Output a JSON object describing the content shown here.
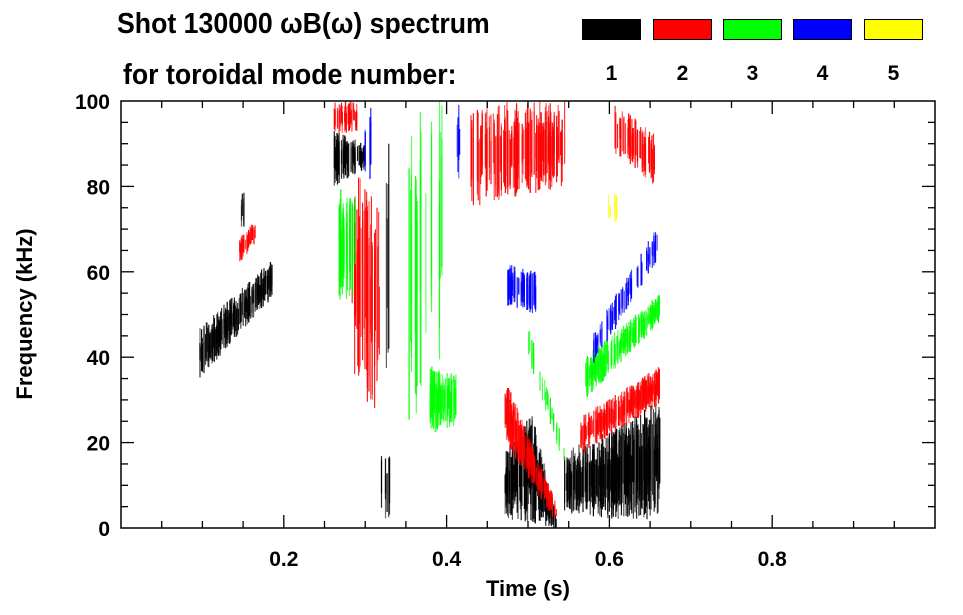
{
  "title_line1": "Shot 130000 ωB(ω) spectrum",
  "title_line2": "for toroidal mode number:",
  "legend": [
    {
      "mode": "1",
      "color": "#000000"
    },
    {
      "mode": "2",
      "color": "#ff0000"
    },
    {
      "mode": "3",
      "color": "#00ff00"
    },
    {
      "mode": "4",
      "color": "#0000ff"
    },
    {
      "mode": "5",
      "color": "#ffff00"
    }
  ],
  "chart_data": {
    "type": "heatmap",
    "title": "Shot 130000 ωB(ω) spectrum for toroidal mode number: 1 2 3 4 5",
    "xlabel": "Time (s)",
    "ylabel": "Frequency (kHz)",
    "xlim": [
      0,
      1.0
    ],
    "ylim": [
      0,
      100
    ],
    "xticks": [
      "0.2",
      "0.4",
      "0.6",
      "0.8"
    ],
    "xtick_values": [
      0.2,
      0.4,
      0.6,
      0.8
    ],
    "yticks": [
      "0",
      "20",
      "40",
      "60",
      "80",
      "100"
    ],
    "ytick_values": [
      0,
      20,
      40,
      60,
      80,
      100
    ],
    "legend_position": "top-right",
    "features": [
      {
        "mode": 1,
        "t": [
          0.097,
          0.186
        ],
        "f_start": [
          35,
          47
        ],
        "f_end": [
          54,
          63
        ],
        "density": 0.95
      },
      {
        "mode": 1,
        "t": [
          0.148,
          0.152
        ],
        "f_start": [
          70,
          79
        ],
        "f_end": [
          70,
          79
        ],
        "density": 0.5
      },
      {
        "mode": 1,
        "t": [
          0.262,
          0.3
        ],
        "f_start": [
          80,
          93
        ],
        "f_end": [
          84,
          90
        ],
        "density": 0.7
      },
      {
        "mode": 1,
        "t": [
          0.326,
          0.329
        ],
        "f_start": [
          30,
          90
        ],
        "f_end": [
          30,
          90
        ],
        "density": 1
      },
      {
        "mode": 1,
        "t": [
          0.32,
          0.33
        ],
        "f_start": [
          1,
          20
        ],
        "f_end": [
          1,
          20
        ],
        "density": 0.6
      },
      {
        "mode": 1,
        "t": [
          0.472,
          0.505
        ],
        "f_start": [
          2,
          18
        ],
        "f_end": [
          1,
          27
        ],
        "density": 0.95
      },
      {
        "mode": 1,
        "t": [
          0.505,
          0.535
        ],
        "f_start": [
          1,
          27
        ],
        "f_end": [
          0,
          3
        ],
        "density": 0.95
      },
      {
        "mode": 1,
        "t": [
          0.545,
          0.6
        ],
        "f_start": [
          3,
          18
        ],
        "f_end": [
          2,
          23
        ],
        "density": 0.95
      },
      {
        "mode": 1,
        "t": [
          0.6,
          0.662
        ],
        "f_start": [
          2,
          23
        ],
        "f_end": [
          2,
          30
        ],
        "density": 0.95
      },
      {
        "mode": 2,
        "t": [
          0.145,
          0.165
        ],
        "f_start": [
          62,
          68
        ],
        "f_end": [
          66,
          72
        ],
        "density": 0.8
      },
      {
        "mode": 2,
        "t": [
          0.262,
          0.29
        ],
        "f_start": [
          92,
          100
        ],
        "f_end": [
          93,
          100
        ],
        "density": 0.7
      },
      {
        "mode": 2,
        "t": [
          0.284,
          0.318
        ],
        "f_start": [
          35,
          85
        ],
        "f_end": [
          25,
          75
        ],
        "density": 0.75
      },
      {
        "mode": 2,
        "t": [
          0.43,
          0.545
        ],
        "f_start": [
          75,
          100
        ],
        "f_end": [
          80,
          100
        ],
        "density": 0.75
      },
      {
        "mode": 2,
        "t": [
          0.472,
          0.535
        ],
        "f_start": [
          20,
          35
        ],
        "f_end": [
          1,
          6
        ],
        "density": 0.85
      },
      {
        "mode": 2,
        "t": [
          0.565,
          0.662
        ],
        "f_start": [
          17,
          26
        ],
        "f_end": [
          29,
          38
        ],
        "density": 0.9
      },
      {
        "mode": 2,
        "t": [
          0.605,
          0.657
        ],
        "f_start": [
          88,
          100
        ],
        "f_end": [
          80,
          92
        ],
        "density": 0.6
      },
      {
        "mode": 3,
        "t": [
          0.268,
          0.29
        ],
        "f_start": [
          50,
          80
        ],
        "f_end": [
          55,
          80
        ],
        "density": 0.5
      },
      {
        "mode": 3,
        "t": [
          0.35,
          0.395
        ],
        "f_start": [
          20,
          100
        ],
        "f_end": [
          40,
          100
        ],
        "density": 0.25
      },
      {
        "mode": 3,
        "t": [
          0.38,
          0.412
        ],
        "f_start": [
          22,
          38
        ],
        "f_end": [
          24,
          36
        ],
        "density": 0.95
      },
      {
        "mode": 3,
        "t": [
          0.5,
          0.545
        ],
        "f_start": [
          40,
          48
        ],
        "f_end": [
          14,
          20
        ],
        "density": 0.4
      },
      {
        "mode": 3,
        "t": [
          0.57,
          0.662
        ],
        "f_start": [
          30,
          40
        ],
        "f_end": [
          48,
          55
        ],
        "density": 0.85
      },
      {
        "mode": 4,
        "t": [
          0.3,
          0.312
        ],
        "f_start": [
          80,
          100
        ],
        "f_end": [
          80,
          100
        ],
        "density": 0.3
      },
      {
        "mode": 4,
        "t": [
          0.413,
          0.416
        ],
        "f_start": [
          80,
          100
        ],
        "f_end": [
          80,
          100
        ],
        "density": 1
      },
      {
        "mode": 4,
        "t": [
          0.475,
          0.51
        ],
        "f_start": [
          52,
          62
        ],
        "f_end": [
          50,
          60
        ],
        "density": 0.7
      },
      {
        "mode": 4,
        "t": [
          0.58,
          0.66
        ],
        "f_start": [
          38,
          46
        ],
        "f_end": [
          63,
          71
        ],
        "density": 0.55
      },
      {
        "mode": 5,
        "t": [
          0.595,
          0.615
        ],
        "f_start": [
          70,
          78
        ],
        "f_end": [
          72,
          80
        ],
        "density": 0.15
      }
    ]
  }
}
